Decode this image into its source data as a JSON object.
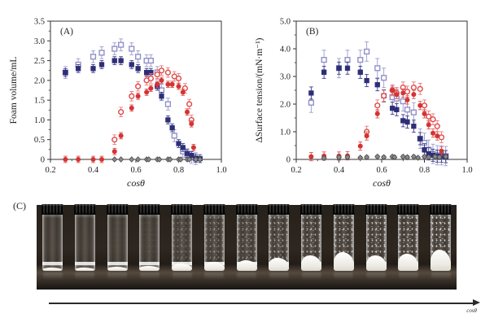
{
  "figure": {
    "panel_c_label": "(C)",
    "arrow_label": "cosθ"
  },
  "chart_data": [
    {
      "type": "scatter",
      "panel_label": "(A)",
      "xlabel": "cosθ",
      "ylabel": "Foam volume/mL",
      "xlim": [
        0.2,
        1.0
      ],
      "ylim": [
        0,
        3.5
      ],
      "xticks": [
        0.2,
        0.4,
        0.6,
        0.8,
        1.0
      ],
      "xtick_labels": [
        "0.2",
        "0.4",
        "0.6",
        "0.8",
        "1.0"
      ],
      "yticks": [
        0,
        0.5,
        1.0,
        1.5,
        2.0,
        2.5,
        3.0,
        3.5
      ],
      "ytick_labels": [
        "0",
        "0.5",
        "1.0",
        "1.5",
        "2.0",
        "2.5",
        "3.0",
        "3.5"
      ],
      "grid": false,
      "legend": null,
      "series": [
        {
          "name": "open-blue-squares",
          "marker": "square-open",
          "color": "#9191c8",
          "err_color": "#9a9ad0",
          "err": 0.15,
          "x": [
            0.27,
            0.33,
            0.4,
            0.44,
            0.5,
            0.53,
            0.58,
            0.61,
            0.65,
            0.67,
            0.7,
            0.72,
            0.75,
            0.78,
            0.82,
            0.84,
            0.86,
            0.88
          ],
          "y": [
            2.2,
            2.4,
            2.6,
            2.7,
            2.8,
            2.9,
            2.8,
            2.6,
            2.5,
            2.5,
            2.2,
            1.75,
            1.4,
            0.6,
            0.2,
            0.12,
            0.05,
            0.02
          ]
        },
        {
          "name": "filled-navy-squares",
          "marker": "square-filled",
          "color": "#2e2e78",
          "err_color": "#3a3a85",
          "err": 0.1,
          "x": [
            0.27,
            0.33,
            0.4,
            0.44,
            0.5,
            0.53,
            0.58,
            0.61,
            0.65,
            0.67,
            0.7,
            0.72,
            0.75,
            0.77,
            0.8,
            0.82,
            0.84,
            0.86,
            0.88,
            0.9
          ],
          "y": [
            2.2,
            2.3,
            2.3,
            2.4,
            2.5,
            2.5,
            2.4,
            2.3,
            2.2,
            2.2,
            1.85,
            1.6,
            1.0,
            0.8,
            0.4,
            0.3,
            0.15,
            0.1,
            0.03,
            0.02
          ]
        },
        {
          "name": "open-red-circles",
          "marker": "circle-open",
          "color": "#e04848",
          "err_color": "#e87878",
          "err": 0.12,
          "x": [
            0.5,
            0.53,
            0.58,
            0.61,
            0.65,
            0.67,
            0.7,
            0.72,
            0.75,
            0.78,
            0.8,
            0.83,
            0.85,
            0.86
          ],
          "y": [
            0.5,
            1.2,
            1.6,
            1.85,
            2.0,
            2.05,
            2.15,
            2.25,
            2.2,
            2.1,
            2.05,
            1.8,
            1.4,
            1.0
          ]
        },
        {
          "name": "filled-red-circles",
          "marker": "circle-filled",
          "color": "#d63333",
          "err_color": "#da5555",
          "err": 0.08,
          "x": [
            0.27,
            0.33,
            0.4,
            0.44,
            0.5,
            0.53,
            0.58,
            0.61,
            0.65,
            0.67,
            0.7,
            0.72,
            0.75,
            0.77,
            0.8,
            0.82,
            0.84,
            0.86,
            0.87
          ],
          "y": [
            0.0,
            0.0,
            0.0,
            0.0,
            0.2,
            0.6,
            1.3,
            1.6,
            1.7,
            1.8,
            1.9,
            2.0,
            1.9,
            1.9,
            1.85,
            1.7,
            1.2,
            0.9,
            0.3
          ]
        },
        {
          "name": "gray-diamonds",
          "marker": "diamond-filled",
          "color": "#8a8a8a",
          "err_color": "#7a7a7a",
          "err": 0.03,
          "x": [
            0.5,
            0.53,
            0.58,
            0.61,
            0.65,
            0.66,
            0.7,
            0.71,
            0.75,
            0.76,
            0.8,
            0.81,
            0.84,
            0.85,
            0.88,
            0.9
          ],
          "y": [
            0,
            0,
            0,
            0,
            0,
            0,
            0,
            0,
            0,
            0,
            0,
            0,
            0,
            0,
            0,
            0
          ]
        }
      ]
    },
    {
      "type": "scatter",
      "panel_label": "(B)",
      "xlabel": "cosθ",
      "ylabel": "ΔSurface tension/(mN·m⁻¹)",
      "xlim": [
        0.2,
        1.0
      ],
      "ylim": [
        0,
        5.0
      ],
      "xticks": [
        0.2,
        0.4,
        0.6,
        0.8,
        1.0
      ],
      "xtick_labels": [
        "0.2",
        "0.4",
        "0.6",
        "0.8",
        "1.0"
      ],
      "yticks": [
        0,
        1.0,
        2.0,
        3.0,
        4.0,
        5.0
      ],
      "ytick_labels": [
        "0",
        "1.0",
        "2.0",
        "3.0",
        "4.0",
        "5.0"
      ],
      "grid": false,
      "legend": null,
      "series": [
        {
          "name": "open-blue-squares",
          "marker": "square-open",
          "color": "#9191c8",
          "err_color": "#9a9ad0",
          "err": 0.35,
          "x": [
            0.27,
            0.33,
            0.4,
            0.44,
            0.5,
            0.53,
            0.58,
            0.61,
            0.65,
            0.67,
            0.7,
            0.72,
            0.75,
            0.78,
            0.8,
            0.82,
            0.84,
            0.86,
            0.88,
            0.9
          ],
          "y": [
            2.05,
            3.6,
            3.3,
            3.6,
            3.6,
            3.9,
            3.3,
            2.95,
            2.25,
            2.2,
            2.1,
            1.8,
            1.7,
            0.75,
            0.6,
            0.35,
            0.2,
            0.15,
            0.15,
            0.12
          ]
        },
        {
          "name": "filled-navy-squares",
          "marker": "square-filled",
          "color": "#2e2e78",
          "err_color": "#3a3a85",
          "err": 0.22,
          "x": [
            0.27,
            0.33,
            0.4,
            0.44,
            0.5,
            0.53,
            0.58,
            0.61,
            0.65,
            0.67,
            0.7,
            0.72,
            0.75,
            0.78,
            0.8,
            0.82,
            0.84,
            0.86,
            0.88,
            0.9
          ],
          "y": [
            2.4,
            3.15,
            3.3,
            3.3,
            3.15,
            2.85,
            2.7,
            2.3,
            1.85,
            1.8,
            1.4,
            1.35,
            1.2,
            0.75,
            0.35,
            0.2,
            0.15,
            0.12,
            0.12,
            0.1
          ]
        },
        {
          "name": "open-red-circles",
          "marker": "circle-open",
          "color": "#e04848",
          "err_color": "#e87878",
          "err": 0.2,
          "x": [
            0.53,
            0.58,
            0.61,
            0.65,
            0.67,
            0.7,
            0.72,
            0.75,
            0.78,
            0.8,
            0.82,
            0.84,
            0.86,
            0.88
          ],
          "y": [
            1.0,
            1.95,
            2.3,
            2.5,
            2.4,
            2.6,
            2.45,
            2.6,
            2.55,
            1.95,
            1.55,
            1.45,
            1.2,
            0.8
          ]
        },
        {
          "name": "filled-red-circles",
          "marker": "circle-filled",
          "color": "#d63333",
          "err_color": "#da5555",
          "err": 0.15,
          "x": [
            0.27,
            0.33,
            0.4,
            0.44,
            0.5,
            0.53,
            0.58,
            0.65,
            0.67,
            0.7,
            0.72,
            0.75,
            0.78,
            0.8,
            0.82,
            0.84,
            0.86,
            0.88
          ],
          "y": [
            0.1,
            0.12,
            0.12,
            0.13,
            0.48,
            0.85,
            1.65,
            2.5,
            2.35,
            2.4,
            2.15,
            2.35,
            1.95,
            1.65,
            1.25,
            0.95,
            0.85,
            0.3
          ]
        },
        {
          "name": "gray-diamonds",
          "marker": "diamond-filled",
          "color": "#8a8a8a",
          "err_color": "#7a7a7a",
          "err": 0.05,
          "x": [
            0.33,
            0.4,
            0.44,
            0.5,
            0.53,
            0.58,
            0.61,
            0.65,
            0.66,
            0.7,
            0.72,
            0.75,
            0.77,
            0.8,
            0.82,
            0.85,
            0.87,
            0.9
          ],
          "y": [
            0.05,
            0.08,
            0.08,
            0.06,
            0.08,
            0.1,
            0.08,
            0.1,
            0.08,
            0.1,
            0.08,
            0.1,
            0.06,
            0.1,
            0.08,
            0.1,
            0.08,
            0.1
          ]
        }
      ]
    }
  ],
  "photo": {
    "vials": [
      {
        "speckle": 0.0,
        "foam": 0.06
      },
      {
        "speckle": 0.0,
        "foam": 0.06
      },
      {
        "speckle": 0.03,
        "foam": 0.07
      },
      {
        "speckle": 0.06,
        "foam": 0.08
      },
      {
        "speckle": 0.28,
        "foam": 0.13
      },
      {
        "speckle": 0.38,
        "foam": 0.16
      },
      {
        "speckle": 0.46,
        "foam": 0.19
      },
      {
        "speckle": 0.55,
        "foam": 0.23
      },
      {
        "speckle": 0.62,
        "foam": 0.27
      },
      {
        "speckle": 0.68,
        "foam": 0.33
      },
      {
        "speckle": 0.72,
        "foam": 0.28
      },
      {
        "speckle": 0.76,
        "foam": 0.31
      },
      {
        "speckle": 0.82,
        "foam": 0.38
      }
    ]
  }
}
